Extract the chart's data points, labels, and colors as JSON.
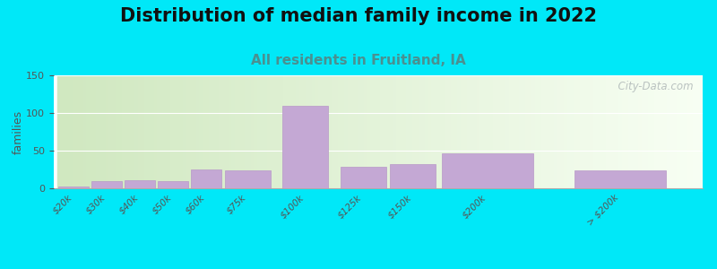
{
  "title": "Distribution of median family income in 2022",
  "subtitle": "All residents in Fruitland, IA",
  "ylabel": "families",
  "categories": [
    "$20k",
    "$30k",
    "$40k",
    "$50k",
    "$60k",
    "$75k",
    "$100k",
    "$125k",
    "$150k",
    "$200k",
    "> $200k"
  ],
  "values": [
    2,
    10,
    11,
    10,
    25,
    24,
    110,
    28,
    32,
    46,
    24
  ],
  "bar_color": "#c4a8d4",
  "bar_edgecolor": "#b898c8",
  "background_outer": "#00e8f8",
  "title_fontsize": 15,
  "subtitle_fontsize": 11,
  "subtitle_color": "#4a9090",
  "ylabel_fontsize": 9,
  "ylim": [
    0,
    150
  ],
  "yticks": [
    0,
    50,
    100,
    150
  ],
  "watermark": "  City-Data.com",
  "bg_left_color": "#d0e8c0",
  "bg_right_color": "#f0f8f0",
  "bg_top_color": "#f8faf8",
  "bar_widths": [
    1,
    1,
    1,
    1,
    1,
    1.5,
    1.5,
    1.5,
    1.5,
    3,
    3
  ],
  "bar_centers": [
    0.5,
    1.5,
    2.5,
    3.5,
    4.5,
    5.75,
    7.5,
    9.25,
    10.75,
    13,
    17
  ]
}
